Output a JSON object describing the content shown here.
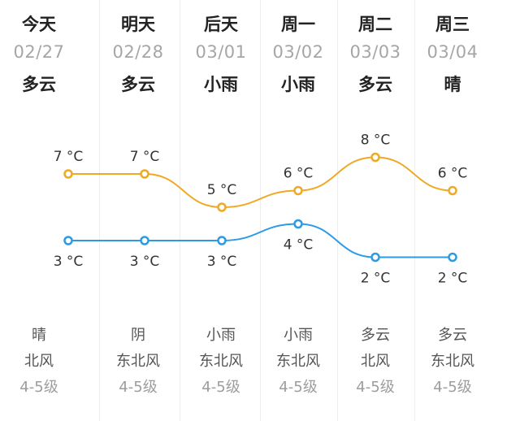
{
  "days": [
    {
      "day": "今天",
      "date": "02/27",
      "weather_day": "多云",
      "weather_night": "晴",
      "wind": "北风",
      "level": "4-5级",
      "high": "7 °C",
      "low": "3 °C"
    },
    {
      "day": "明天",
      "date": "02/28",
      "weather_day": "多云",
      "weather_night": "阴",
      "wind": "东北风",
      "level": "4-5级",
      "high": "7 °C",
      "low": "3 °C"
    },
    {
      "day": "后天",
      "date": "03/01",
      "weather_day": "小雨",
      "weather_night": "小雨",
      "wind": "东北风",
      "level": "4-5级",
      "high": "5 °C",
      "low": "3 °C"
    },
    {
      "day": "周一",
      "date": "03/02",
      "weather_day": "小雨",
      "weather_night": "小雨",
      "wind": "东北风",
      "level": "4-5级",
      "high": "6 °C",
      "low": "4 °C"
    },
    {
      "day": "周二",
      "date": "03/03",
      "weather_day": "多云",
      "weather_night": "多云",
      "wind": "北风",
      "level": "4-5级",
      "high": "8 °C",
      "low": "2 °C"
    },
    {
      "day": "周三",
      "date": "03/04",
      "weather_day": "晴",
      "weather_night": "多云",
      "wind": "东北风",
      "level": "4-5级",
      "high": "6 °C",
      "low": "2 °C"
    }
  ],
  "chart_data": {
    "type": "line",
    "categories": [
      "今天",
      "明天",
      "后天",
      "周一",
      "周二",
      "周三"
    ],
    "series": [
      {
        "values": [
          7,
          7,
          5,
          6,
          8,
          6
        ],
        "color": "#f0a925"
      },
      {
        "values": [
          3,
          3,
          3,
          4,
          2,
          2
        ],
        "color": "#2c9be6"
      }
    ]
  }
}
